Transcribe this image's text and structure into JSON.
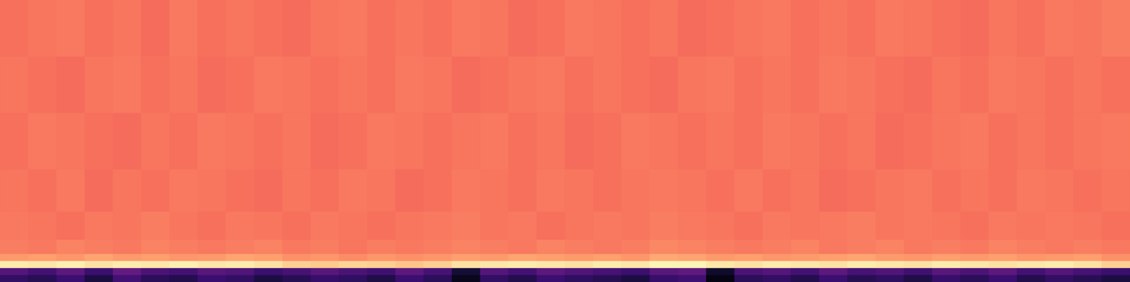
{
  "chart_data": {
    "type": "heatmap",
    "tick_labels": false,
    "xlim": [
      0,
      40
    ],
    "ylim": [
      0,
      40
    ],
    "xticks": [
      0,
      40
    ],
    "yticks": [
      0,
      40
    ],
    "zlim": [
      0,
      1
    ],
    "x_edges": [
      0,
      1,
      2,
      3,
      4,
      5,
      6,
      7,
      8,
      9,
      10,
      11,
      12,
      13,
      14,
      15,
      16,
      17,
      18,
      19,
      20,
      21,
      22,
      23,
      24,
      25,
      26,
      27,
      28,
      29,
      30,
      31,
      32,
      33,
      34,
      35,
      36,
      37,
      38,
      39,
      40
    ],
    "y_edges": [
      0,
      1,
      2,
      3,
      4,
      6,
      10,
      16,
      24,
      32,
      40
    ],
    "cells": [
      [
        0.18,
        0.15,
        0.2,
        0.12,
        0.22,
        0.16,
        0.14,
        0.2,
        0.18,
        0.12,
        0.15,
        0.19,
        0.17,
        0.13,
        0.2,
        0.16,
        0.05,
        0.18,
        0.14,
        0.2,
        0.17,
        0.15,
        0.12,
        0.19,
        0.21,
        0.03,
        0.16,
        0.18,
        0.14,
        0.2,
        0.15,
        0.17,
        0.13,
        0.19,
        0.16,
        0.2,
        0.14,
        0.18,
        0.15,
        0.12
      ],
      [
        0.26,
        0.22,
        0.28,
        0.2,
        0.3,
        0.24,
        0.22,
        0.27,
        0.25,
        0.2,
        0.23,
        0.27,
        0.24,
        0.21,
        0.28,
        0.23,
        0.1,
        0.26,
        0.22,
        0.28,
        0.25,
        0.23,
        0.2,
        0.27,
        0.29,
        0.08,
        0.24,
        0.26,
        0.22,
        0.28,
        0.23,
        0.25,
        0.21,
        0.27,
        0.24,
        0.28,
        0.22,
        0.26,
        0.23,
        0.2
      ],
      [
        0.96,
        0.95,
        0.97,
        0.94,
        0.96,
        0.95,
        0.97,
        0.95,
        0.96,
        0.94,
        0.9,
        0.89,
        0.91,
        0.9,
        0.88,
        0.9,
        0.94,
        0.95,
        0.96,
        0.95,
        0.94,
        0.96,
        0.95,
        0.98,
        0.98,
        0.95,
        0.94,
        0.96,
        0.95,
        0.94,
        0.96,
        0.95,
        0.94,
        0.96,
        0.95,
        0.94,
        0.95,
        0.96,
        0.94,
        0.9
      ],
      [
        0.79,
        0.8,
        0.78,
        0.81,
        0.79,
        0.8,
        0.78,
        0.79,
        0.81,
        0.8,
        0.77,
        0.78,
        0.76,
        0.78,
        0.77,
        0.78,
        0.8,
        0.79,
        0.81,
        0.8,
        0.79,
        0.8,
        0.78,
        0.82,
        0.81,
        0.79,
        0.8,
        0.78,
        0.79,
        0.8,
        0.81,
        0.79,
        0.78,
        0.8,
        0.79,
        0.8,
        0.78,
        0.79,
        0.8,
        0.77
      ],
      [
        0.73,
        0.72,
        0.74,
        0.73,
        0.72,
        0.74,
        0.73,
        0.72,
        0.73,
        0.74,
        0.72,
        0.73,
        0.71,
        0.73,
        0.72,
        0.73,
        0.74,
        0.73,
        0.72,
        0.74,
        0.73,
        0.72,
        0.73,
        0.75,
        0.74,
        0.73,
        0.72,
        0.73,
        0.74,
        0.72,
        0.73,
        0.74,
        0.72,
        0.73,
        0.72,
        0.74,
        0.73,
        0.72,
        0.73,
        0.72
      ],
      [
        0.72,
        0.71,
        0.7,
        0.72,
        0.71,
        0.73,
        0.71,
        0.7,
        0.72,
        0.71,
        0.7,
        0.72,
        0.71,
        0.7,
        0.71,
        0.72,
        0.73,
        0.71,
        0.72,
        0.7,
        0.71,
        0.72,
        0.71,
        0.73,
        0.72,
        0.71,
        0.7,
        0.72,
        0.71,
        0.72,
        0.73,
        0.71,
        0.72,
        0.71,
        0.7,
        0.72,
        0.71,
        0.72,
        0.71,
        0.7
      ],
      [
        0.71,
        0.7,
        0.72,
        0.69,
        0.71,
        0.7,
        0.72,
        0.71,
        0.7,
        0.69,
        0.71,
        0.7,
        0.72,
        0.71,
        0.69,
        0.7,
        0.72,
        0.71,
        0.7,
        0.72,
        0.71,
        0.7,
        0.71,
        0.72,
        0.71,
        0.7,
        0.72,
        0.7,
        0.71,
        0.69,
        0.7,
        0.71,
        0.72,
        0.7,
        0.71,
        0.7,
        0.72,
        0.71,
        0.7,
        0.71
      ],
      [
        0.7,
        0.72,
        0.71,
        0.7,
        0.69,
        0.71,
        0.7,
        0.72,
        0.71,
        0.7,
        0.71,
        0.69,
        0.7,
        0.72,
        0.71,
        0.7,
        0.71,
        0.72,
        0.7,
        0.71,
        0.69,
        0.7,
        0.72,
        0.71,
        0.7,
        0.71,
        0.7,
        0.72,
        0.71,
        0.7,
        0.71,
        0.69,
        0.7,
        0.71,
        0.72,
        0.7,
        0.71,
        0.7,
        0.71,
        0.72
      ],
      [
        0.71,
        0.7,
        0.69,
        0.71,
        0.72,
        0.7,
        0.71,
        0.69,
        0.7,
        0.72,
        0.71,
        0.7,
        0.71,
        0.7,
        0.72,
        0.71,
        0.69,
        0.7,
        0.71,
        0.72,
        0.7,
        0.71,
        0.7,
        0.69,
        0.71,
        0.72,
        0.7,
        0.71,
        0.7,
        0.72,
        0.71,
        0.7,
        0.69,
        0.71,
        0.7,
        0.72,
        0.71,
        0.7,
        0.71,
        0.7
      ],
      [
        0.7,
        0.71,
        0.72,
        0.7,
        0.71,
        0.69,
        0.72,
        0.7,
        0.71,
        0.7,
        0.69,
        0.71,
        0.72,
        0.7,
        0.71,
        0.7,
        0.72,
        0.71,
        0.69,
        0.7,
        0.72,
        0.71,
        0.7,
        0.71,
        0.69,
        0.7,
        0.71,
        0.72,
        0.7,
        0.71,
        0.7,
        0.72,
        0.71,
        0.7,
        0.69,
        0.71,
        0.7,
        0.72,
        0.71,
        0.73
      ]
    ]
  }
}
